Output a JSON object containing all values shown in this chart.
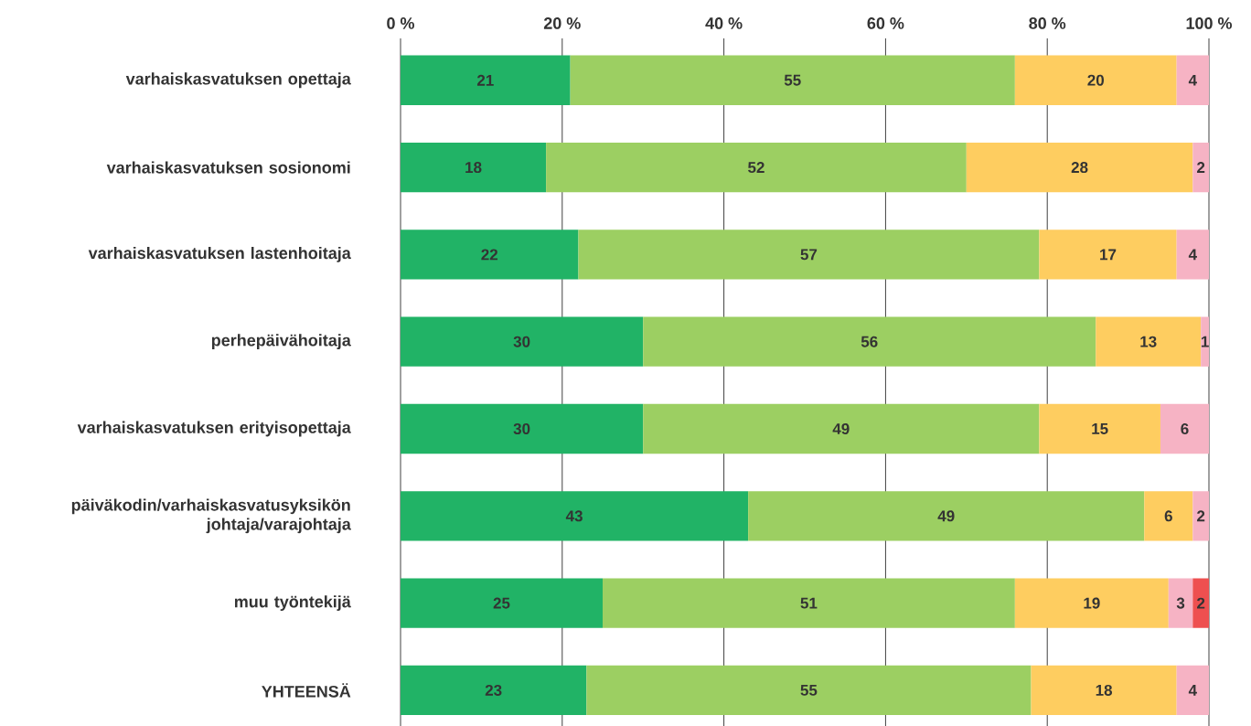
{
  "chart_data": {
    "type": "bar",
    "orientation": "horizontal",
    "stacked": true,
    "categories": [
      "varhaiskasvatuksen opettaja",
      "varhaiskasvatuksen sosionomi",
      "varhaiskasvatuksen lastenhoitaja",
      "perhepäivähoitaja",
      "varhaiskasvatuksen erityisopettaja",
      "päiväkodin/varhaiskasvatusyksikön johtaja/varajohtaja",
      "muu työntekijä",
      "YHTEENSÄ"
    ],
    "series": [
      {
        "color": "#21b366",
        "values": [
          21,
          18,
          22,
          30,
          30,
          43,
          25,
          23
        ]
      },
      {
        "color": "#9ccf62",
        "values": [
          55,
          52,
          57,
          56,
          49,
          49,
          51,
          55
        ]
      },
      {
        "color": "#fecd60",
        "values": [
          20,
          28,
          17,
          13,
          15,
          6,
          19,
          18
        ]
      },
      {
        "color": "#f6b3c4",
        "values": [
          4,
          2,
          4,
          1,
          6,
          2,
          3,
          4
        ]
      },
      {
        "color": "#ee5050",
        "values": [
          null,
          null,
          null,
          null,
          null,
          null,
          2,
          null
        ]
      }
    ],
    "xlim": [
      0,
      100
    ],
    "xticks": [
      {
        "value": 0,
        "label": "0 %"
      },
      {
        "value": 20,
        "label": "20 %"
      },
      {
        "value": 40,
        "label": "40 %"
      },
      {
        "value": 60,
        "label": "60 %"
      },
      {
        "value": 80,
        "label": "80 %"
      },
      {
        "value": 100,
        "label": "100 %"
      }
    ],
    "grid": "x",
    "data_labels": true
  }
}
